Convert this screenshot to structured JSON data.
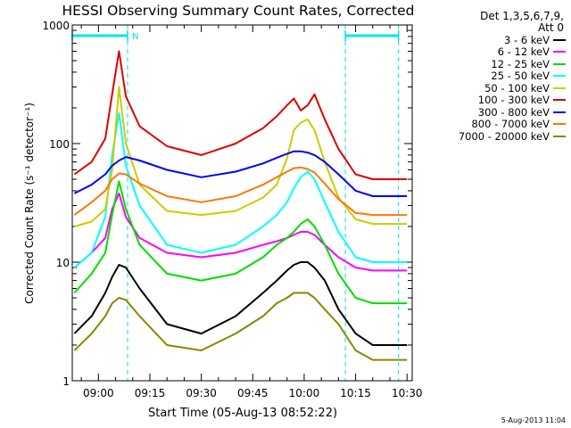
{
  "chart_data": {
    "type": "line",
    "title": "HESSI Observing Summary Count Rates, Corrected",
    "xlabel": "Start Time (05-Aug-13 08:52:22)",
    "ylabel": "Corrected Count Rate (s⁻¹ detector⁻¹)",
    "yscale": "log",
    "xlim": [
      "08:52:22",
      "10:31:30"
    ],
    "ylim": [
      1,
      1000
    ],
    "x_ticks": [
      "09:00",
      "09:15",
      "09:30",
      "09:45",
      "10:00",
      "10:15",
      "10:30"
    ],
    "y_ticks": [
      "1",
      "10",
      "100",
      "1000"
    ],
    "grid": false,
    "legend_position": "right",
    "detectors": "Det 1,3,5,6,7,9,",
    "attenuator": "Att 0",
    "flags": [
      {
        "label": "N",
        "start": "08:52:22",
        "end": "09:08:30"
      },
      {
        "label": "",
        "start": "10:12:00",
        "end": "10:27:30"
      }
    ],
    "vlines": [
      "09:08:30",
      "10:12:00",
      "10:27:30"
    ],
    "x": [
      "08:53",
      "08:58",
      "09:02",
      "09:04",
      "09:06",
      "09:08",
      "09:12",
      "09:20",
      "09:30",
      "09:40",
      "09:48",
      "09:52",
      "09:55",
      "09:57",
      "09:59",
      "10:01",
      "10:03",
      "10:06",
      "10:10",
      "10:15",
      "10:20",
      "10:27",
      "10:30"
    ],
    "series": [
      {
        "name": "3 - 6 keV",
        "color": "#000000",
        "values": [
          2.5,
          3.5,
          5.5,
          7.5,
          9.5,
          9,
          6,
          3,
          2.5,
          3.5,
          5.5,
          7,
          8.5,
          9.5,
          10,
          10,
          9,
          7,
          4,
          2.5,
          2,
          2,
          2
        ]
      },
      {
        "name": "6 - 12 keV",
        "color": "#ff00ff",
        "values": [
          9,
          12,
          16,
          28,
          38,
          24,
          16,
          12,
          11,
          12,
          14,
          15,
          16,
          17,
          18,
          18,
          17,
          14,
          11,
          9,
          8.5,
          8.5,
          8.5
        ]
      },
      {
        "name": "12 - 25 keV",
        "color": "#00dd00",
        "values": [
          5.5,
          8,
          12,
          25,
          48,
          28,
          14,
          8,
          7,
          8,
          11,
          14,
          16,
          18,
          21,
          23,
          20,
          14,
          8,
          5,
          4.5,
          4.5,
          4.5
        ]
      },
      {
        "name": "25 - 50 keV",
        "color": "#00ffff",
        "values": [
          9,
          12,
          24,
          80,
          180,
          65,
          30,
          14,
          12,
          14,
          20,
          25,
          32,
          42,
          52,
          58,
          50,
          32,
          18,
          11,
          10,
          10,
          10
        ]
      },
      {
        "name": "50 - 100 keV",
        "color": "#cccc00",
        "values": [
          20,
          22,
          28,
          60,
          300,
          100,
          45,
          27,
          25,
          27,
          35,
          45,
          75,
          130,
          150,
          160,
          130,
          70,
          35,
          23,
          21,
          21,
          21
        ]
      },
      {
        "name": "100 - 300 keV",
        "color": "#dd0000",
        "values": [
          55,
          70,
          110,
          260,
          600,
          250,
          140,
          95,
          80,
          100,
          135,
          170,
          210,
          240,
          190,
          210,
          260,
          160,
          90,
          55,
          50,
          50,
          50
        ]
      },
      {
        "name": "300 - 800 keV",
        "color": "#0000ff",
        "values": [
          38,
          45,
          55,
          65,
          72,
          77,
          72,
          60,
          52,
          58,
          68,
          76,
          82,
          86,
          86,
          84,
          80,
          70,
          55,
          40,
          36,
          36,
          36
        ]
      },
      {
        "name": "800 - 7000 keV",
        "color": "#ff7700",
        "values": [
          25,
          32,
          40,
          50,
          56,
          55,
          46,
          36,
          32,
          36,
          45,
          52,
          58,
          62,
          63,
          61,
          57,
          46,
          34,
          26,
          25,
          25,
          25
        ]
      },
      {
        "name": "7000 - 20000 keV",
        "color": "#888800",
        "values": [
          1.8,
          2.5,
          3.5,
          4.5,
          5,
          4.8,
          3.5,
          2,
          1.8,
          2.5,
          3.5,
          4.5,
          5,
          5.5,
          5.5,
          5.5,
          5,
          4,
          3,
          1.8,
          1.5,
          1.5,
          1.5
        ]
      }
    ]
  },
  "timestamp": "5-Aug-2013 11:04"
}
